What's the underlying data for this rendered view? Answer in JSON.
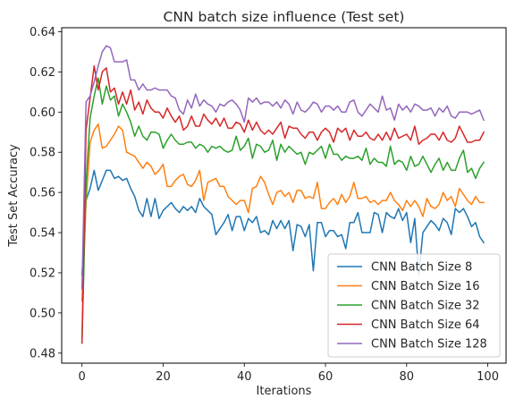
{
  "chart_data": {
    "type": "line",
    "title": "CNN batch size influence (Test set)",
    "xlabel": "Iterations",
    "ylabel": "Test Set Accuracy",
    "xlim": [
      -5,
      104.5
    ],
    "ylim": [
      0.475,
      0.642
    ],
    "xticks": [
      0,
      20,
      40,
      60,
      80,
      100
    ],
    "xtick_labels": [
      "0",
      "20",
      "40",
      "60",
      "80",
      "100"
    ],
    "yticks": [
      0.48,
      0.5,
      0.52,
      0.54,
      0.56,
      0.58,
      0.6,
      0.62,
      0.64
    ],
    "ytick_labels": [
      "0.48",
      "0.50",
      "0.52",
      "0.54",
      "0.56",
      "0.58",
      "0.60",
      "0.62",
      "0.64"
    ],
    "grid": false,
    "legend_position": "lower-right",
    "x_start": 0,
    "x_step": 1,
    "series": [
      {
        "name": "CNN Batch Size 8",
        "color": "#1f77b4",
        "values": [
          0.519,
          0.556,
          0.562,
          0.571,
          0.561,
          0.566,
          0.571,
          0.571,
          0.567,
          0.568,
          0.566,
          0.567,
          0.562,
          0.558,
          0.551,
          0.548,
          0.557,
          0.548,
          0.557,
          0.547,
          0.551,
          0.553,
          0.555,
          0.552,
          0.55,
          0.553,
          0.551,
          0.553,
          0.55,
          0.557,
          0.553,
          0.551,
          0.549,
          0.539,
          0.542,
          0.545,
          0.549,
          0.541,
          0.548,
          0.548,
          0.541,
          0.547,
          0.545,
          0.548,
          0.54,
          0.541,
          0.539,
          0.546,
          0.542,
          0.546,
          0.542,
          0.546,
          0.531,
          0.544,
          0.543,
          0.538,
          0.544,
          0.521,
          0.545,
          0.545,
          0.538,
          0.541,
          0.541,
          0.538,
          0.539,
          0.532,
          0.545,
          0.545,
          0.55,
          0.54,
          0.54,
          0.54,
          0.55,
          0.549,
          0.54,
          0.55,
          0.548,
          0.547,
          0.552,
          0.546,
          0.55,
          0.535,
          0.547,
          0.519,
          0.54,
          0.543,
          0.546,
          0.544,
          0.541,
          0.547,
          0.545,
          0.539,
          0.552,
          0.55,
          0.552,
          0.548,
          0.543,
          0.545,
          0.538,
          0.535
        ]
      },
      {
        "name": "CNN Batch Size 16",
        "color": "#ff7f0e",
        "values": [
          0.506,
          0.555,
          0.585,
          0.591,
          0.594,
          0.582,
          0.583,
          0.586,
          0.589,
          0.593,
          0.591,
          0.58,
          0.579,
          0.578,
          0.575,
          0.572,
          0.575,
          0.573,
          0.569,
          0.571,
          0.574,
          0.563,
          0.563,
          0.566,
          0.568,
          0.569,
          0.564,
          0.563,
          0.566,
          0.571,
          0.556,
          0.565,
          0.566,
          0.567,
          0.563,
          0.563,
          0.558,
          0.556,
          0.554,
          0.556,
          0.556,
          0.55,
          0.562,
          0.563,
          0.568,
          0.565,
          0.559,
          0.554,
          0.56,
          0.561,
          0.558,
          0.56,
          0.555,
          0.561,
          0.561,
          0.557,
          0.558,
          0.557,
          0.565,
          0.552,
          0.552,
          0.555,
          0.557,
          0.554,
          0.559,
          0.555,
          0.558,
          0.565,
          0.557,
          0.557,
          0.558,
          0.555,
          0.556,
          0.554,
          0.556,
          0.556,
          0.56,
          0.556,
          0.554,
          0.551,
          0.556,
          0.553,
          0.556,
          0.553,
          0.548,
          0.557,
          0.553,
          0.552,
          0.554,
          0.56,
          0.556,
          0.558,
          0.553,
          0.562,
          0.559,
          0.556,
          0.554,
          0.558,
          0.555,
          0.555
        ]
      },
      {
        "name": "CNN Batch Size 32",
        "color": "#2ca02c",
        "values": [
          0.485,
          0.564,
          0.597,
          0.608,
          0.617,
          0.604,
          0.613,
          0.606,
          0.608,
          0.598,
          0.604,
          0.6,
          0.595,
          0.588,
          0.593,
          0.588,
          0.586,
          0.59,
          0.59,
          0.589,
          0.582,
          0.586,
          0.589,
          0.586,
          0.584,
          0.584,
          0.585,
          0.585,
          0.582,
          0.584,
          0.583,
          0.58,
          0.583,
          0.582,
          0.583,
          0.581,
          0.58,
          0.581,
          0.588,
          0.581,
          0.583,
          0.587,
          0.577,
          0.584,
          0.583,
          0.58,
          0.581,
          0.586,
          0.576,
          0.584,
          0.58,
          0.583,
          0.581,
          0.579,
          0.58,
          0.574,
          0.58,
          0.579,
          0.581,
          0.583,
          0.577,
          0.584,
          0.579,
          0.579,
          0.576,
          0.578,
          0.577,
          0.577,
          0.578,
          0.576,
          0.582,
          0.574,
          0.577,
          0.575,
          0.575,
          0.573,
          0.583,
          0.574,
          0.576,
          0.575,
          0.571,
          0.578,
          0.573,
          0.574,
          0.578,
          0.574,
          0.57,
          0.574,
          0.577,
          0.571,
          0.575,
          0.571,
          0.571,
          0.577,
          0.581,
          0.57,
          0.572,
          0.567,
          0.572,
          0.575
        ]
      },
      {
        "name": "CNN Batch Size 64",
        "color": "#d62728",
        "values": [
          0.485,
          0.591,
          0.607,
          0.623,
          0.611,
          0.62,
          0.622,
          0.61,
          0.612,
          0.604,
          0.61,
          0.604,
          0.611,
          0.601,
          0.605,
          0.599,
          0.606,
          0.602,
          0.6,
          0.6,
          0.597,
          0.602,
          0.598,
          0.595,
          0.598,
          0.591,
          0.593,
          0.598,
          0.593,
          0.593,
          0.599,
          0.596,
          0.594,
          0.597,
          0.593,
          0.597,
          0.592,
          0.592,
          0.595,
          0.594,
          0.59,
          0.596,
          0.591,
          0.595,
          0.591,
          0.589,
          0.591,
          0.589,
          0.592,
          0.595,
          0.587,
          0.593,
          0.592,
          0.592,
          0.589,
          0.587,
          0.59,
          0.59,
          0.586,
          0.59,
          0.592,
          0.59,
          0.585,
          0.592,
          0.59,
          0.592,
          0.586,
          0.591,
          0.588,
          0.588,
          0.59,
          0.587,
          0.586,
          0.589,
          0.586,
          0.59,
          0.586,
          0.592,
          0.587,
          0.588,
          0.589,
          0.586,
          0.593,
          0.584,
          0.586,
          0.587,
          0.589,
          0.589,
          0.586,
          0.59,
          0.586,
          0.585,
          0.587,
          0.593,
          0.589,
          0.585,
          0.585,
          0.586,
          0.586,
          0.59
        ]
      },
      {
        "name": "CNN Batch Size 128",
        "color": "#9467bd",
        "values": [
          0.512,
          0.605,
          0.608,
          0.615,
          0.623,
          0.63,
          0.633,
          0.632,
          0.625,
          0.625,
          0.625,
          0.626,
          0.616,
          0.616,
          0.611,
          0.614,
          0.611,
          0.611,
          0.612,
          0.611,
          0.611,
          0.611,
          0.608,
          0.607,
          0.601,
          0.599,
          0.606,
          0.602,
          0.609,
          0.603,
          0.606,
          0.604,
          0.603,
          0.6,
          0.604,
          0.603,
          0.605,
          0.606,
          0.604,
          0.601,
          0.595,
          0.607,
          0.605,
          0.607,
          0.604,
          0.605,
          0.605,
          0.603,
          0.605,
          0.602,
          0.606,
          0.604,
          0.599,
          0.605,
          0.601,
          0.6,
          0.602,
          0.605,
          0.604,
          0.6,
          0.603,
          0.603,
          0.601,
          0.603,
          0.6,
          0.6,
          0.605,
          0.606,
          0.6,
          0.598,
          0.601,
          0.604,
          0.602,
          0.6,
          0.608,
          0.601,
          0.602,
          0.596,
          0.604,
          0.601,
          0.603,
          0.6,
          0.604,
          0.603,
          0.601,
          0.601,
          0.602,
          0.598,
          0.602,
          0.6,
          0.603,
          0.598,
          0.597,
          0.6,
          0.6,
          0.6,
          0.599,
          0.6,
          0.601,
          0.596
        ]
      }
    ]
  }
}
